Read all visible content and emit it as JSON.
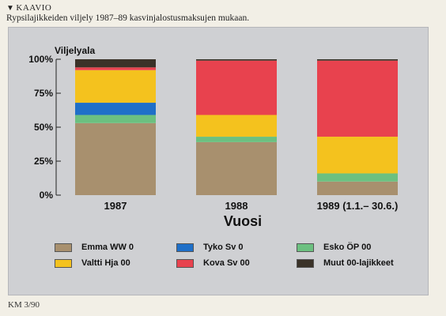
{
  "header": {
    "kaavio": "KAAVIO",
    "caption": "Rypsilajikkeiden viljely 1987–89 kasvinjalostusmaksujen mukaan."
  },
  "footer": {
    "source": "KM 3/90"
  },
  "chart_data": {
    "type": "bar",
    "stacked": true,
    "title": "",
    "ylabel": "Viljelyala",
    "xlabel": "Vuosi",
    "ylim": [
      0,
      100
    ],
    "yticks": [
      "0%",
      "25%",
      "50%",
      "75%",
      "100%"
    ],
    "grid": false,
    "legend_position": "bottom",
    "categories": [
      "1987",
      "1988",
      "1989 (1.1.– 30.6.)"
    ],
    "series": [
      {
        "name": "Emma WW 0",
        "color": "#a8906e",
        "values": [
          53,
          39,
          10
        ]
      },
      {
        "name": "Esko ÖP 00",
        "color": "#6cc080",
        "values": [
          6,
          4,
          6
        ]
      },
      {
        "name": "Tyko Sv 0",
        "color": "#1f6fc8",
        "values": [
          9,
          0,
          0
        ]
      },
      {
        "name": "Valtti Hja 00",
        "color": "#f4c21e",
        "values": [
          24,
          16,
          27
        ]
      },
      {
        "name": "Kova Sv 00",
        "color": "#e8424e",
        "values": [
          2,
          40,
          56
        ]
      },
      {
        "name": "Muut 00-lajikkeet",
        "color": "#3a3228",
        "values": [
          6,
          1,
          1
        ]
      }
    ],
    "legend_order": [
      "Emma WW 0",
      "Tyko Sv 0",
      "Esko ÖP 00",
      "Valtti Hja 00",
      "Kova Sv 00",
      "Muut 00-lajikkeet"
    ]
  }
}
